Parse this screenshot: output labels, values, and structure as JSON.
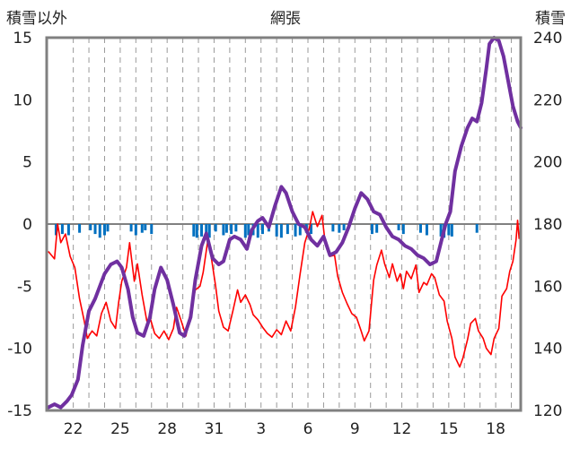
{
  "chart_data": {
    "type": "line",
    "title": "網張",
    "left_axis": {
      "label": "積雪以外",
      "ticks": [
        "15",
        "10",
        "5",
        "0",
        "-5",
        "-10",
        "-15"
      ],
      "range": [
        -15,
        15
      ]
    },
    "right_axis": {
      "label": "積雪",
      "ticks": [
        "240",
        "220",
        "200",
        "180",
        "160",
        "140",
        "120"
      ],
      "range": [
        120,
        240
      ]
    },
    "x_axis": {
      "ticks": [
        "22",
        "25",
        "28",
        "31",
        "3",
        "6",
        "9",
        "12",
        "15",
        "18"
      ],
      "tick_day": [
        22,
        25,
        28,
        31,
        34,
        37,
        40,
        43,
        46,
        49
      ],
      "range": [
        20.3,
        50.6
      ],
      "grid_days": [
        22,
        23,
        24,
        25,
        26,
        27,
        28,
        29,
        30,
        31,
        32,
        33,
        34,
        35,
        36,
        37,
        38,
        39,
        40,
        41,
        42,
        43,
        44,
        45,
        46,
        47,
        48,
        49,
        50
      ]
    },
    "grid": true,
    "series": [
      {
        "axis": "left",
        "color": "#ff0000",
        "points": [
          [
            20.4,
            -2.2
          ],
          [
            20.8,
            -2.8
          ],
          [
            21.0,
            0.0
          ],
          [
            21.2,
            -1.5
          ],
          [
            21.5,
            -0.8
          ],
          [
            21.8,
            -2.6
          ],
          [
            22.1,
            -3.5
          ],
          [
            22.4,
            -6.0
          ],
          [
            22.7,
            -7.8
          ],
          [
            22.9,
            -9.2
          ],
          [
            23.2,
            -8.6
          ],
          [
            23.5,
            -9.0
          ],
          [
            23.8,
            -7.2
          ],
          [
            24.1,
            -6.3
          ],
          [
            24.4,
            -7.8
          ],
          [
            24.7,
            -8.4
          ],
          [
            24.9,
            -6.3
          ],
          [
            25.1,
            -4.6
          ],
          [
            25.4,
            -3.5
          ],
          [
            25.6,
            -1.5
          ],
          [
            25.9,
            -4.6
          ],
          [
            26.1,
            -3.2
          ],
          [
            26.4,
            -5.7
          ],
          [
            26.7,
            -7.8
          ],
          [
            26.9,
            -7.5
          ],
          [
            27.2,
            -8.8
          ],
          [
            27.5,
            -9.2
          ],
          [
            27.8,
            -8.6
          ],
          [
            28.1,
            -9.3
          ],
          [
            28.4,
            -8.4
          ],
          [
            28.6,
            -6.7
          ],
          [
            28.9,
            -7.8
          ],
          [
            29.2,
            -9.0
          ],
          [
            29.5,
            -7.0
          ],
          [
            29.8,
            -5.3
          ],
          [
            30.1,
            -5.0
          ],
          [
            30.3,
            -3.9
          ],
          [
            30.6,
            -1.3
          ],
          [
            30.8,
            -2.5
          ],
          [
            31.1,
            -5.0
          ],
          [
            31.3,
            -7.0
          ],
          [
            31.6,
            -8.3
          ],
          [
            31.9,
            -8.6
          ],
          [
            32.2,
            -7.0
          ],
          [
            32.5,
            -5.3
          ],
          [
            32.7,
            -6.3
          ],
          [
            33.0,
            -5.7
          ],
          [
            33.3,
            -6.5
          ],
          [
            33.5,
            -7.3
          ],
          [
            33.8,
            -7.7
          ],
          [
            34.1,
            -8.3
          ],
          [
            34.4,
            -8.8
          ],
          [
            34.7,
            -9.1
          ],
          [
            35.0,
            -8.5
          ],
          [
            35.3,
            -8.9
          ],
          [
            35.6,
            -7.8
          ],
          [
            35.9,
            -8.6
          ],
          [
            36.2,
            -6.7
          ],
          [
            36.5,
            -4.0
          ],
          [
            36.8,
            -1.5
          ],
          [
            37.1,
            -0.3
          ],
          [
            37.3,
            1.0
          ],
          [
            37.6,
            -0.2
          ],
          [
            37.9,
            0.7
          ],
          [
            38.1,
            -1.5
          ],
          [
            38.4,
            -2.6
          ],
          [
            38.7,
            -2.5
          ],
          [
            38.9,
            -4.2
          ],
          [
            39.2,
            -5.5
          ],
          [
            39.5,
            -6.4
          ],
          [
            39.8,
            -7.2
          ],
          [
            40.1,
            -7.5
          ],
          [
            40.4,
            -8.6
          ],
          [
            40.6,
            -9.4
          ],
          [
            40.9,
            -8.6
          ],
          [
            41.2,
            -4.5
          ],
          [
            41.4,
            -3.3
          ],
          [
            41.7,
            -2.1
          ],
          [
            41.9,
            -3.2
          ],
          [
            42.2,
            -4.3
          ],
          [
            42.4,
            -3.2
          ],
          [
            42.7,
            -4.6
          ],
          [
            42.9,
            -4.0
          ],
          [
            43.1,
            -5.2
          ],
          [
            43.3,
            -3.8
          ],
          [
            43.6,
            -4.4
          ],
          [
            43.9,
            -3.3
          ],
          [
            44.1,
            -5.5
          ],
          [
            44.4,
            -4.7
          ],
          [
            44.6,
            -4.9
          ],
          [
            44.9,
            -4.0
          ],
          [
            45.1,
            -4.3
          ],
          [
            45.4,
            -5.7
          ],
          [
            45.7,
            -6.2
          ],
          [
            45.9,
            -7.8
          ],
          [
            46.2,
            -9.2
          ],
          [
            46.4,
            -10.7
          ],
          [
            46.7,
            -11.5
          ],
          [
            46.9,
            -10.8
          ],
          [
            47.2,
            -9.3
          ],
          [
            47.4,
            -8.0
          ],
          [
            47.7,
            -7.6
          ],
          [
            47.9,
            -8.6
          ],
          [
            48.2,
            -9.2
          ],
          [
            48.4,
            -10.0
          ],
          [
            48.7,
            -10.5
          ],
          [
            48.9,
            -9.2
          ],
          [
            49.2,
            -8.4
          ],
          [
            49.4,
            -5.8
          ],
          [
            49.7,
            -5.2
          ],
          [
            49.9,
            -3.8
          ],
          [
            50.1,
            -3.0
          ],
          [
            50.3,
            -1.3
          ],
          [
            50.4,
            0.3
          ],
          [
            50.5,
            -1.2
          ]
        ]
      },
      {
        "axis": "right",
        "color": "#7030a0",
        "points": [
          [
            20.4,
            121
          ],
          [
            20.8,
            122
          ],
          [
            21.2,
            121
          ],
          [
            21.6,
            123
          ],
          [
            21.9,
            125
          ],
          [
            22.3,
            130
          ],
          [
            22.6,
            141
          ],
          [
            23.0,
            152
          ],
          [
            23.4,
            156
          ],
          [
            23.7,
            160
          ],
          [
            24.0,
            164
          ],
          [
            24.4,
            167
          ],
          [
            24.8,
            168
          ],
          [
            25.1,
            166
          ],
          [
            25.5,
            159
          ],
          [
            25.8,
            150
          ],
          [
            26.1,
            145
          ],
          [
            26.5,
            144
          ],
          [
            26.9,
            150
          ],
          [
            27.2,
            159
          ],
          [
            27.6,
            166
          ],
          [
            28.0,
            162
          ],
          [
            28.4,
            154
          ],
          [
            28.8,
            145
          ],
          [
            29.1,
            144
          ],
          [
            29.5,
            150
          ],
          [
            29.8,
            162
          ],
          [
            30.2,
            173
          ],
          [
            30.5,
            177
          ],
          [
            30.9,
            169
          ],
          [
            31.3,
            167
          ],
          [
            31.6,
            168
          ],
          [
            32.0,
            175
          ],
          [
            32.3,
            176
          ],
          [
            32.7,
            175
          ],
          [
            33.1,
            172
          ],
          [
            33.4,
            178
          ],
          [
            33.8,
            181
          ],
          [
            34.1,
            182
          ],
          [
            34.5,
            179
          ],
          [
            34.9,
            186
          ],
          [
            35.3,
            192
          ],
          [
            35.6,
            190
          ],
          [
            36.0,
            184
          ],
          [
            36.4,
            180
          ],
          [
            36.8,
            179
          ],
          [
            37.2,
            175
          ],
          [
            37.6,
            173
          ],
          [
            38.0,
            176
          ],
          [
            38.4,
            170
          ],
          [
            38.8,
            171
          ],
          [
            39.2,
            174
          ],
          [
            39.6,
            179
          ],
          [
            40.0,
            185
          ],
          [
            40.4,
            190
          ],
          [
            40.8,
            188
          ],
          [
            41.2,
            184
          ],
          [
            41.6,
            183
          ],
          [
            42.0,
            179
          ],
          [
            42.4,
            176
          ],
          [
            42.8,
            175
          ],
          [
            43.2,
            173
          ],
          [
            43.6,
            172
          ],
          [
            44.0,
            170
          ],
          [
            44.4,
            169
          ],
          [
            44.8,
            167
          ],
          [
            45.2,
            168
          ],
          [
            45.5,
            174
          ],
          [
            45.8,
            180
          ],
          [
            46.1,
            184
          ],
          [
            46.4,
            197
          ],
          [
            46.8,
            205
          ],
          [
            47.2,
            211
          ],
          [
            47.5,
            214
          ],
          [
            47.8,
            213
          ],
          [
            48.1,
            219
          ],
          [
            48.4,
            230
          ],
          [
            48.6,
            238
          ],
          [
            48.9,
            240
          ],
          [
            49.2,
            239
          ],
          [
            49.5,
            234
          ],
          [
            49.8,
            226
          ],
          [
            50.1,
            218
          ],
          [
            50.4,
            213
          ],
          [
            50.6,
            211
          ]
        ]
      }
    ],
    "bars": {
      "axis": "left",
      "color": "#0070c0",
      "from": 0,
      "items": [
        [
          20.9,
          -0.9
        ],
        [
          21.3,
          -0.8
        ],
        [
          21.7,
          -0.9
        ],
        [
          22.4,
          -0.7
        ],
        [
          23.1,
          -0.5
        ],
        [
          23.4,
          -0.8
        ],
        [
          23.7,
          -1.1
        ],
        [
          24.0,
          -0.9
        ],
        [
          24.2,
          -0.6
        ],
        [
          25.7,
          -0.6
        ],
        [
          26.0,
          -0.9
        ],
        [
          26.4,
          -0.7
        ],
        [
          26.6,
          -0.5
        ],
        [
          27.0,
          -0.8
        ],
        [
          29.7,
          -1.0
        ],
        [
          29.9,
          -1.1
        ],
        [
          30.2,
          -1.0
        ],
        [
          30.5,
          -0.9
        ],
        [
          30.7,
          -1.1
        ],
        [
          31.1,
          -0.6
        ],
        [
          31.6,
          -0.9
        ],
        [
          31.8,
          -0.7
        ],
        [
          32.1,
          -0.8
        ],
        [
          32.4,
          -0.6
        ],
        [
          33.0,
          -1.1
        ],
        [
          33.2,
          -0.9
        ],
        [
          33.5,
          -0.9
        ],
        [
          33.8,
          -1.1
        ],
        [
          34.1,
          -0.8
        ],
        [
          34.5,
          -0.6
        ],
        [
          35.0,
          -1.0
        ],
        [
          35.3,
          -1.1
        ],
        [
          35.7,
          -0.8
        ],
        [
          36.2,
          -1.0
        ],
        [
          36.5,
          -0.9
        ],
        [
          36.9,
          -0.7
        ],
        [
          37.2,
          -0.8
        ],
        [
          38.6,
          -0.6
        ],
        [
          39.0,
          -0.7
        ],
        [
          39.3,
          -0.5
        ],
        [
          41.1,
          -0.8
        ],
        [
          41.4,
          -0.7
        ],
        [
          42.8,
          -0.5
        ],
        [
          43.1,
          -0.8
        ],
        [
          44.2,
          -0.7
        ],
        [
          44.6,
          -0.9
        ],
        [
          45.5,
          -1.0
        ],
        [
          45.7,
          -1.1
        ],
        [
          46.0,
          -0.9
        ],
        [
          46.2,
          -1.0
        ],
        [
          47.8,
          -0.7
        ]
      ]
    }
  }
}
